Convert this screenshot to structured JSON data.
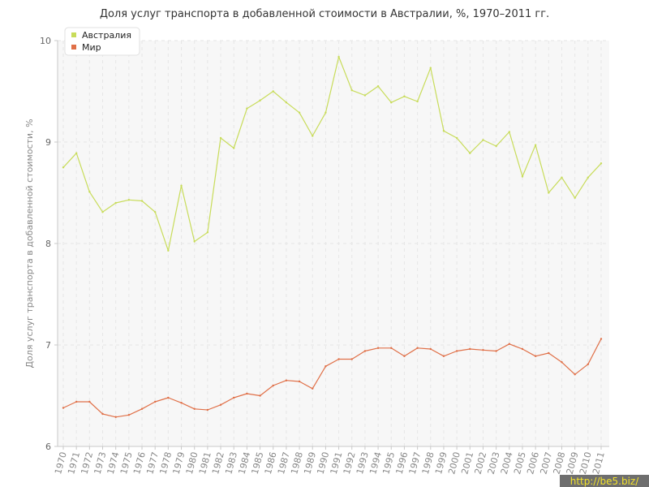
{
  "chart_data": {
    "type": "line",
    "title": "Доля услуг транспорта в добавленной стоимости в Австралии, %, 1970–2011 гг.",
    "xlabel": "",
    "ylabel": "Доля услуг транспорта в добавленной стоимости, %",
    "ylim": [
      6,
      10
    ],
    "yticks": [
      "6",
      "7",
      "8",
      "9",
      "10"
    ],
    "grid": true,
    "legend_position": "top-left",
    "categories": [
      "1970",
      "1971",
      "1972",
      "1973",
      "1974",
      "1975",
      "1976",
      "1977",
      "1978",
      "1979",
      "1980",
      "1981",
      "1982",
      "1983",
      "1984",
      "1985",
      "1986",
      "1987",
      "1988",
      "1989",
      "1990",
      "1991",
      "1992",
      "1993",
      "1994",
      "1995",
      "1996",
      "1997",
      "1998",
      "1999",
      "2000",
      "2001",
      "2002",
      "2003",
      "2004",
      "2005",
      "2006",
      "2007",
      "2008",
      "2009",
      "2010",
      "2011"
    ],
    "series": [
      {
        "name": "Австралия",
        "color": "#c8dc5a",
        "values": [
          8.75,
          8.89,
          8.51,
          8.31,
          8.4,
          8.43,
          8.42,
          8.31,
          7.93,
          8.57,
          8.02,
          8.11,
          9.04,
          8.94,
          9.33,
          9.41,
          9.5,
          9.39,
          9.29,
          9.06,
          9.29,
          9.84,
          9.51,
          9.46,
          9.55,
          9.39,
          9.45,
          9.4,
          9.73,
          9.11,
          9.04,
          8.89,
          9.02,
          8.96,
          9.1,
          8.66,
          8.97,
          8.5,
          8.65,
          8.45,
          8.65,
          8.79
        ]
      },
      {
        "name": "Мир",
        "color": "#e07048",
        "values": [
          6.38,
          6.44,
          6.44,
          6.32,
          6.29,
          6.31,
          6.37,
          6.44,
          6.48,
          6.43,
          6.37,
          6.36,
          6.41,
          6.48,
          6.52,
          6.5,
          6.6,
          6.65,
          6.64,
          6.57,
          6.79,
          6.86,
          6.86,
          6.94,
          6.97,
          6.97,
          6.89,
          6.97,
          6.96,
          6.89,
          6.94,
          6.96,
          6.95,
          6.94,
          7.01,
          6.96,
          6.89,
          6.92,
          6.83,
          6.71,
          6.81,
          7.06
        ]
      }
    ]
  },
  "watermark": "http://be5.biz/"
}
